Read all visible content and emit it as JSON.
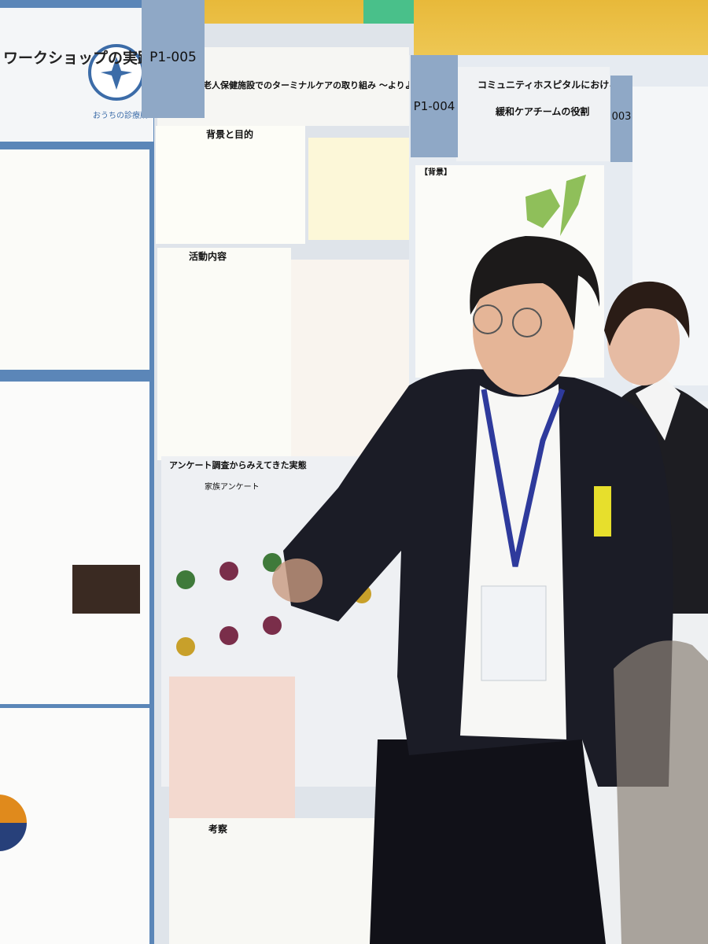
{
  "posters": [
    {
      "title": "ワークショップの実践",
      "org": "おうちの診療所"
    },
    {
      "number": "P1-005",
      "title": "老人保健施設でのターミナルケアの取り組み ～よりよい看取りを目指して～",
      "sections": [
        "背景と目的",
        "活動内容",
        "アンケート調査からみえてきた実態",
        "家族アンケート",
        "考察"
      ]
    },
    {
      "number": "P1-004",
      "title": [
        "コミュニティホスピタルにおける",
        "緩和ケアチームの役割"
      ],
      "sections": [
        "【背景】"
      ]
    },
    {
      "number": "003"
    }
  ]
}
